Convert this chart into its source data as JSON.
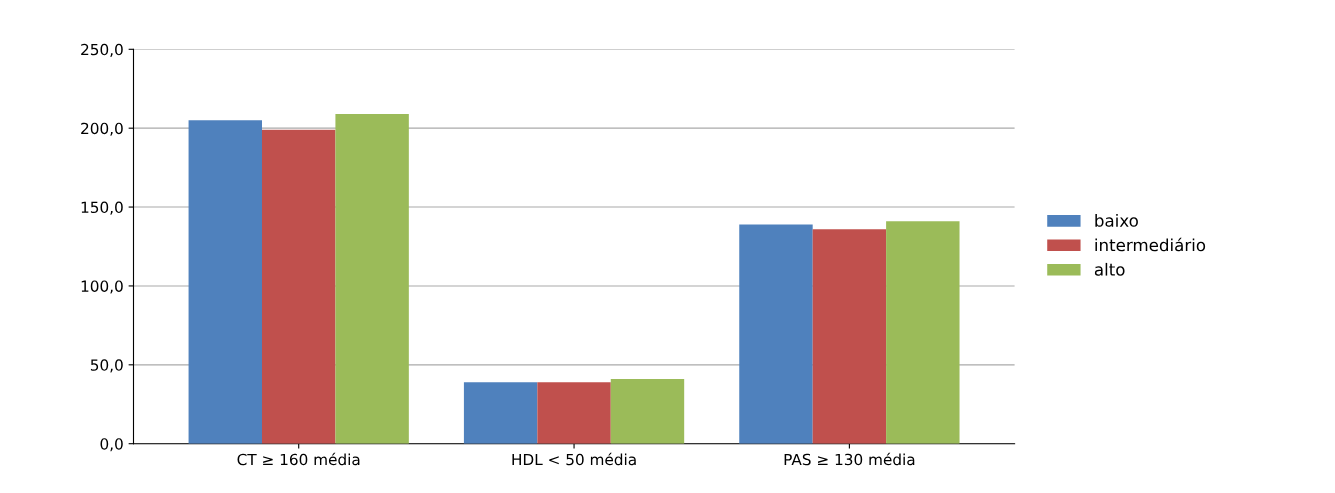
{
  "chart_data": {
    "type": "bar",
    "categories": [
      "CT ≥ 160 média",
      "HDL < 50 média",
      "PAS ≥ 130 média"
    ],
    "series": [
      {
        "name": "baixo",
        "color": "#4f81bd",
        "values": [
          205,
          39,
          139
        ]
      },
      {
        "name": "intermediário",
        "color": "#c0504d",
        "values": [
          199,
          39,
          136
        ]
      },
      {
        "name": "alto",
        "color": "#9bbb59",
        "values": [
          209,
          41,
          141
        ]
      }
    ],
    "ylim": [
      0,
      250
    ],
    "yticks": [
      {
        "value": 0,
        "label": "0,0"
      },
      {
        "value": 50,
        "label": "50,0"
      },
      {
        "value": 100,
        "label": "100,0"
      },
      {
        "value": 150,
        "label": "150,0"
      },
      {
        "value": 200,
        "label": "200,0"
      },
      {
        "value": 250,
        "label": "250,0"
      }
    ],
    "grid": "y",
    "legend": "right"
  }
}
